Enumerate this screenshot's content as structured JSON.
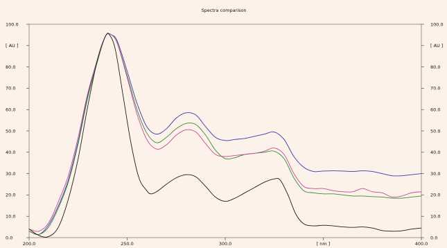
{
  "chart_data": {
    "type": "line",
    "title": "Spectra comparison",
    "xlim": [
      200,
      400
    ],
    "ylim": [
      0,
      100
    ],
    "x_ticks": [
      {
        "v": 200,
        "label": "200.0"
      },
      {
        "v": 250,
        "label": "250.0"
      },
      {
        "v": 300,
        "label": "300.0"
      },
      {
        "v": 350,
        "label": "[ nm ]"
      },
      {
        "v": 400,
        "label": "400.0"
      }
    ],
    "y_ticks_left": [
      {
        "v": 100,
        "label": "100.0"
      },
      {
        "v": 90,
        "label": "[ AU ]"
      },
      {
        "v": 80,
        "label": "80.0"
      },
      {
        "v": 70,
        "label": "70.0"
      },
      {
        "v": 60,
        "label": "60.0"
      },
      {
        "v": 50,
        "label": "50.0"
      },
      {
        "v": 40,
        "label": "40.0"
      },
      {
        "v": 30,
        "label": "30.0"
      },
      {
        "v": 20,
        "label": "20.0"
      },
      {
        "v": 10,
        "label": "10.0"
      },
      {
        "v": 0,
        "label": "0.0"
      }
    ],
    "y_ticks_right": [
      {
        "v": 100,
        "label": "100.0"
      },
      {
        "v": 90,
        "label": "[ AU ]"
      },
      {
        "v": 80,
        "label": "80.0"
      },
      {
        "v": 70,
        "label": "70.0"
      },
      {
        "v": 60,
        "label": "60.0"
      },
      {
        "v": 50,
        "label": "50.0"
      },
      {
        "v": 40,
        "label": "40.0"
      },
      {
        "v": 30,
        "label": "30.0"
      },
      {
        "v": 20,
        "label": "20.0"
      },
      {
        "v": 10,
        "label": "10.0"
      },
      {
        "v": 0,
        "label": "0.0"
      }
    ],
    "grid": false,
    "series": [
      {
        "color": "#3a3aa8",
        "points": [
          [
            200,
            3
          ],
          [
            205,
            1.5
          ],
          [
            210,
            6
          ],
          [
            215,
            15
          ],
          [
            220,
            27
          ],
          [
            225,
            45
          ],
          [
            230,
            67
          ],
          [
            235,
            84
          ],
          [
            239,
            94.5
          ],
          [
            242,
            95
          ],
          [
            245,
            92
          ],
          [
            250,
            78
          ],
          [
            255,
            63
          ],
          [
            260,
            52
          ],
          [
            265,
            48.5
          ],
          [
            270,
            51
          ],
          [
            275,
            56
          ],
          [
            280,
            58.5
          ],
          [
            285,
            57.5
          ],
          [
            290,
            52
          ],
          [
            295,
            47
          ],
          [
            300,
            45.5
          ],
          [
            305,
            46
          ],
          [
            310,
            46.5
          ],
          [
            315,
            47.5
          ],
          [
            320,
            48.5
          ],
          [
            325,
            49.5
          ],
          [
            330,
            46
          ],
          [
            335,
            38
          ],
          [
            340,
            33
          ],
          [
            345,
            31
          ],
          [
            350,
            31.2
          ],
          [
            355,
            31.3
          ],
          [
            360,
            31.2
          ],
          [
            365,
            31
          ],
          [
            370,
            31.3
          ],
          [
            375,
            31
          ],
          [
            380,
            30
          ],
          [
            385,
            29
          ],
          [
            390,
            29
          ],
          [
            395,
            29.5
          ],
          [
            400,
            30
          ]
        ]
      },
      {
        "color": "#3a8a3a",
        "points": [
          [
            200,
            3
          ],
          [
            205,
            1.5
          ],
          [
            210,
            5
          ],
          [
            215,
            14
          ],
          [
            220,
            26
          ],
          [
            225,
            44
          ],
          [
            230,
            66
          ],
          [
            235,
            83
          ],
          [
            239,
            94.5
          ],
          [
            242,
            95
          ],
          [
            245,
            91
          ],
          [
            250,
            76
          ],
          [
            255,
            60
          ],
          [
            260,
            49
          ],
          [
            265,
            44.5
          ],
          [
            270,
            47
          ],
          [
            275,
            51
          ],
          [
            280,
            53.5
          ],
          [
            285,
            53
          ],
          [
            290,
            48
          ],
          [
            295,
            41
          ],
          [
            300,
            37
          ],
          [
            305,
            37.5
          ],
          [
            310,
            39
          ],
          [
            315,
            39.5
          ],
          [
            320,
            40
          ],
          [
            325,
            40.5
          ],
          [
            330,
            37
          ],
          [
            335,
            28
          ],
          [
            340,
            22
          ],
          [
            345,
            21
          ],
          [
            350,
            20.5
          ],
          [
            355,
            20.5
          ],
          [
            360,
            20
          ],
          [
            365,
            19.5
          ],
          [
            370,
            19.5
          ],
          [
            375,
            19.2
          ],
          [
            380,
            19
          ],
          [
            385,
            18.5
          ],
          [
            390,
            18.5
          ],
          [
            395,
            19
          ],
          [
            400,
            19.5
          ]
        ]
      },
      {
        "color": "#c04a9a",
        "points": [
          [
            200,
            4
          ],
          [
            205,
            3
          ],
          [
            210,
            7
          ],
          [
            215,
            17
          ],
          [
            220,
            29
          ],
          [
            225,
            47
          ],
          [
            230,
            68
          ],
          [
            235,
            84
          ],
          [
            239,
            94.5
          ],
          [
            242,
            95
          ],
          [
            245,
            91
          ],
          [
            250,
            75
          ],
          [
            255,
            58
          ],
          [
            260,
            46
          ],
          [
            265,
            41.5
          ],
          [
            270,
            43.5
          ],
          [
            275,
            48
          ],
          [
            280,
            50.5
          ],
          [
            285,
            49.5
          ],
          [
            290,
            44
          ],
          [
            295,
            39
          ],
          [
            300,
            38
          ],
          [
            305,
            38.5
          ],
          [
            310,
            39
          ],
          [
            315,
            39.5
          ],
          [
            320,
            40.5
          ],
          [
            325,
            42
          ],
          [
            330,
            39
          ],
          [
            335,
            30
          ],
          [
            340,
            24
          ],
          [
            345,
            23
          ],
          [
            350,
            23
          ],
          [
            355,
            22
          ],
          [
            360,
            21.5
          ],
          [
            365,
            21.5
          ],
          [
            370,
            23
          ],
          [
            375,
            21.5
          ],
          [
            380,
            21
          ],
          [
            385,
            19
          ],
          [
            390,
            19.5
          ],
          [
            395,
            21
          ],
          [
            400,
            21.5
          ]
        ]
      },
      {
        "color": "#1c1c1c",
        "points": [
          [
            200,
            4
          ],
          [
            205,
            1
          ],
          [
            210,
            0.5
          ],
          [
            215,
            5
          ],
          [
            220,
            18
          ],
          [
            225,
            37
          ],
          [
            230,
            62
          ],
          [
            235,
            84
          ],
          [
            239,
            94.5
          ],
          [
            241,
            95
          ],
          [
            244,
            88
          ],
          [
            248,
            66
          ],
          [
            252,
            44
          ],
          [
            256,
            28
          ],
          [
            260,
            22
          ],
          [
            262,
            20.5
          ],
          [
            265,
            21.5
          ],
          [
            270,
            25
          ],
          [
            275,
            28
          ],
          [
            280,
            29.5
          ],
          [
            285,
            28.5
          ],
          [
            290,
            24
          ],
          [
            295,
            19
          ],
          [
            300,
            17
          ],
          [
            305,
            18.5
          ],
          [
            310,
            21
          ],
          [
            315,
            23.5
          ],
          [
            320,
            26
          ],
          [
            325,
            27.5
          ],
          [
            328,
            27
          ],
          [
            332,
            20
          ],
          [
            336,
            11
          ],
          [
            340,
            6.5
          ],
          [
            345,
            5.5
          ],
          [
            350,
            5.8
          ],
          [
            355,
            5.5
          ],
          [
            360,
            5
          ],
          [
            365,
            4.8
          ],
          [
            370,
            5
          ],
          [
            375,
            4.5
          ],
          [
            380,
            3.3
          ],
          [
            385,
            3
          ],
          [
            390,
            3.2
          ],
          [
            395,
            4
          ],
          [
            400,
            4.5
          ]
        ]
      }
    ]
  }
}
